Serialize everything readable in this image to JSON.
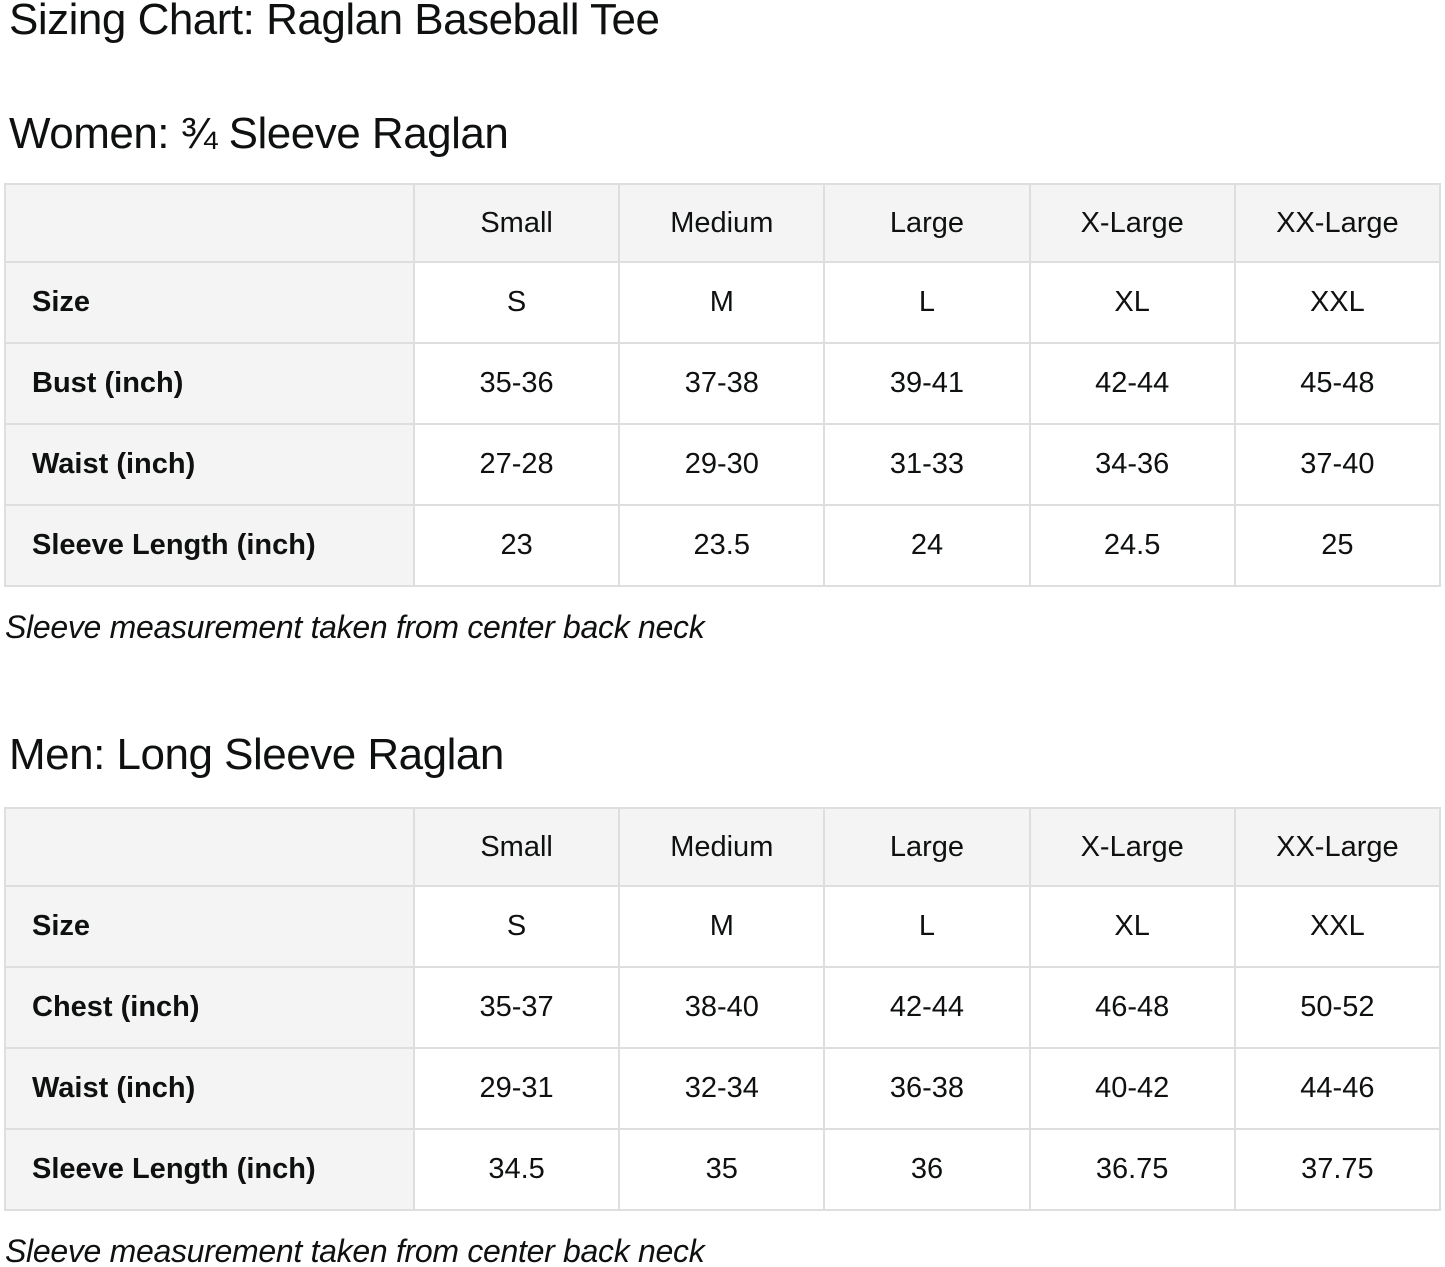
{
  "page": {
    "title": "Sizing Chart: Raglan Baseball Tee",
    "colors": {
      "background": "#ffffff",
      "text": "#0f1111",
      "cell_gray": "#f4f4f4",
      "border": "#dedede"
    }
  },
  "sections": [
    {
      "heading": "Women: ¾ Sleeve Raglan",
      "note": "Sleeve measurement taken from center back neck",
      "table": {
        "corner": "",
        "column_headers": [
          "Small",
          "Medium",
          "Large",
          "X-Large",
          "XX-Large"
        ],
        "rows": [
          {
            "label": "Size",
            "values": [
              "S",
              "M",
              "L",
              "XL",
              "XXL"
            ]
          },
          {
            "label": "Bust (inch)",
            "values": [
              "35-36",
              "37-38",
              "39-41",
              "42-44",
              "45-48"
            ]
          },
          {
            "label": "Waist (inch)",
            "values": [
              "27-28",
              "29-30",
              "31-33",
              "34-36",
              "37-40"
            ]
          },
          {
            "label": "Sleeve Length (inch)",
            "values": [
              "23",
              "23.5",
              "24",
              "24.5",
              "25"
            ]
          }
        ]
      }
    },
    {
      "heading": "Men: Long Sleeve Raglan",
      "note": "Sleeve measurement taken from center back neck",
      "table": {
        "corner": "",
        "column_headers": [
          "Small",
          "Medium",
          "Large",
          "X-Large",
          "XX-Large"
        ],
        "rows": [
          {
            "label": "Size",
            "values": [
              "S",
              "M",
              "L",
              "XL",
              "XXL"
            ]
          },
          {
            "label": "Chest (inch)",
            "values": [
              "35-37",
              "38-40",
              "42-44",
              "46-48",
              "50-52"
            ]
          },
          {
            "label": "Waist (inch)",
            "values": [
              "29-31",
              "32-34",
              "36-38",
              "40-42",
              "44-46"
            ]
          },
          {
            "label": "Sleeve Length (inch)",
            "values": [
              "34.5",
              "35",
              "36",
              "36.75",
              "37.75"
            ]
          }
        ]
      }
    }
  ]
}
